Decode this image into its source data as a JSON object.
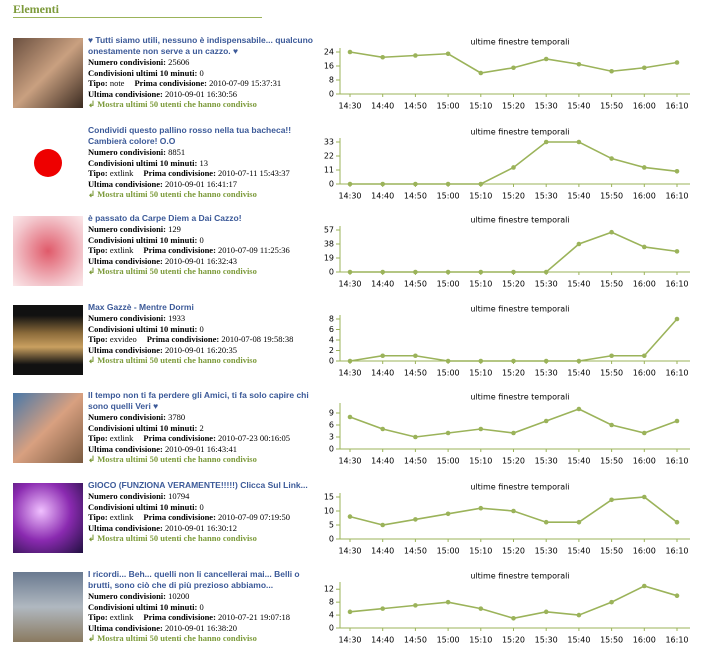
{
  "header": {
    "title": "Elementi"
  },
  "labels": {
    "shares": "Numero condivisioni:",
    "recent": "Condivisioni ultimi 10 minuti:",
    "type": "Tipo:",
    "first": "Prima condivisione:",
    "last": "Ultima condivisione:",
    "link": "Mostra ultimi 50 utenti che hanno condiviso"
  },
  "items": [
    {
      "title": "♥ Tutti siamo utili, nessuno è indispensabile... qualcuno onestamente non serve a un cazzo. ♥",
      "shares": "25606",
      "recent": "0",
      "type": "note",
      "first": "2010-07-09 15:37:31",
      "last": "2010-09-01 16:30:56"
    },
    {
      "title": "Condividi questo pallino rosso nella tua bacheca!! Cambierà colore! O.O",
      "shares": "8851",
      "recent": "13",
      "type": "extlink",
      "first": "2010-07-11 15:43:37",
      "last": "2010-09-01 16:41:17"
    },
    {
      "title": "è passato da Carpe Diem a Dai Cazzo!",
      "shares": "129",
      "recent": "0",
      "type": "extlink",
      "first": "2010-07-09 11:25:36",
      "last": "2010-09-01 16:32:43"
    },
    {
      "title": "Max Gazzè - Mentre Dormi",
      "shares": "1933",
      "recent": "0",
      "type": "exvideo",
      "first": "2010-07-08 19:58:38",
      "last": "2010-09-01 16:20:35"
    },
    {
      "title": "Il tempo non ti fa perdere gli Amici, ti fa solo capire chi sono quelli Veri ♥",
      "shares": "3780",
      "recent": "2",
      "type": "extlink",
      "first": "2010-07-23 00:16:05",
      "last": "2010-09-01 16:43:41"
    },
    {
      "title": "GIOCO (FUNZIONA VERAMENTE!!!!!) Clicca Sul Link...",
      "shares": "10794",
      "recent": "0",
      "type": "extlink",
      "first": "2010-07-09 07:19:50",
      "last": "2010-09-01 16:30:12"
    },
    {
      "title": "I ricordi... Beh... quelli non li cancellerai mai... Belli o brutti, sono ciò che di più prezioso abbiamo...",
      "shares": "10200",
      "recent": "0",
      "type": "extlink",
      "first": "2010-07-21 19:07:18",
      "last": "2010-09-01 16:38:20"
    }
  ],
  "chart_data": [
    {
      "type": "line",
      "title": "ultime finestre temporali",
      "color": "#9bb35a",
      "categories": [
        "14:30",
        "14:40",
        "14:50",
        "15:00",
        "15:10",
        "15:20",
        "15:30",
        "15:40",
        "15:50",
        "16:00",
        "16:10"
      ],
      "values": [
        24,
        21,
        22,
        23,
        12,
        15,
        20,
        17,
        13,
        15,
        18
      ],
      "ylim": [
        0,
        24
      ],
      "yticks": [
        0,
        8,
        16,
        24
      ]
    },
    {
      "type": "line",
      "title": "ultime finestre temporali",
      "color": "#9bb35a",
      "categories": [
        "14:30",
        "14:40",
        "14:50",
        "15:00",
        "15:10",
        "15:20",
        "15:30",
        "15:40",
        "15:50",
        "16:00",
        "16:10"
      ],
      "values": [
        0,
        0,
        0,
        0,
        0,
        13,
        33,
        33,
        20,
        13,
        10
      ],
      "ylim": [
        0,
        33
      ],
      "yticks": [
        0,
        11,
        22,
        33
      ]
    },
    {
      "type": "line",
      "title": "ultime finestre temporali",
      "color": "#9bb35a",
      "categories": [
        "14:30",
        "14:40",
        "14:50",
        "15:00",
        "15:10",
        "15:20",
        "15:30",
        "15:40",
        "15:50",
        "16:00",
        "16:10"
      ],
      "values": [
        0,
        0,
        0,
        0,
        0,
        0,
        0,
        38,
        54,
        34,
        28
      ],
      "ylim": [
        0,
        57
      ],
      "yticks": [
        0,
        19,
        38,
        57
      ]
    },
    {
      "type": "line",
      "title": "ultime finestre temporali",
      "color": "#9bb35a",
      "categories": [
        "14:30",
        "14:40",
        "14:50",
        "15:00",
        "15:10",
        "15:20",
        "15:30",
        "15:40",
        "15:50",
        "16:00",
        "16:10"
      ],
      "values": [
        0,
        1,
        1,
        0,
        0,
        0,
        0,
        0,
        1,
        1,
        8
      ],
      "ylim": [
        0,
        8
      ],
      "yticks": [
        0,
        2,
        4,
        6,
        8
      ]
    },
    {
      "type": "line",
      "title": "ultime finestre temporali",
      "color": "#9bb35a",
      "categories": [
        "14:30",
        "14:40",
        "14:50",
        "15:00",
        "15:10",
        "15:20",
        "15:30",
        "15:40",
        "15:50",
        "16:00",
        "16:10"
      ],
      "values": [
        8,
        5,
        3,
        4,
        5,
        4,
        7,
        10,
        6,
        4,
        7
      ],
      "ylim": [
        0,
        10.5
      ],
      "yticks": [
        0,
        3,
        6,
        9
      ]
    },
    {
      "type": "line",
      "title": "ultime finestre temporali",
      "color": "#9bb35a",
      "categories": [
        "14:30",
        "14:40",
        "14:50",
        "15:00",
        "15:10",
        "15:20",
        "15:30",
        "15:40",
        "15:50",
        "16:00",
        "16:10"
      ],
      "values": [
        8,
        5,
        7,
        9,
        11,
        10,
        6,
        6,
        14,
        15,
        6
      ],
      "ylim": [
        0,
        15
      ],
      "yticks": [
        0,
        5,
        10,
        15
      ]
    },
    {
      "type": "line",
      "title": "ultime finestre temporali",
      "color": "#9bb35a",
      "categories": [
        "14:30",
        "14:40",
        "14:50",
        "15:00",
        "15:10",
        "15:20",
        "15:30",
        "15:40",
        "15:50",
        "16:00",
        "16:10"
      ],
      "values": [
        5,
        6,
        7,
        8,
        6,
        3,
        5,
        4,
        8,
        13,
        10
      ],
      "ylim": [
        0,
        13
      ],
      "yticks": [
        0,
        4,
        8,
        12
      ]
    }
  ]
}
